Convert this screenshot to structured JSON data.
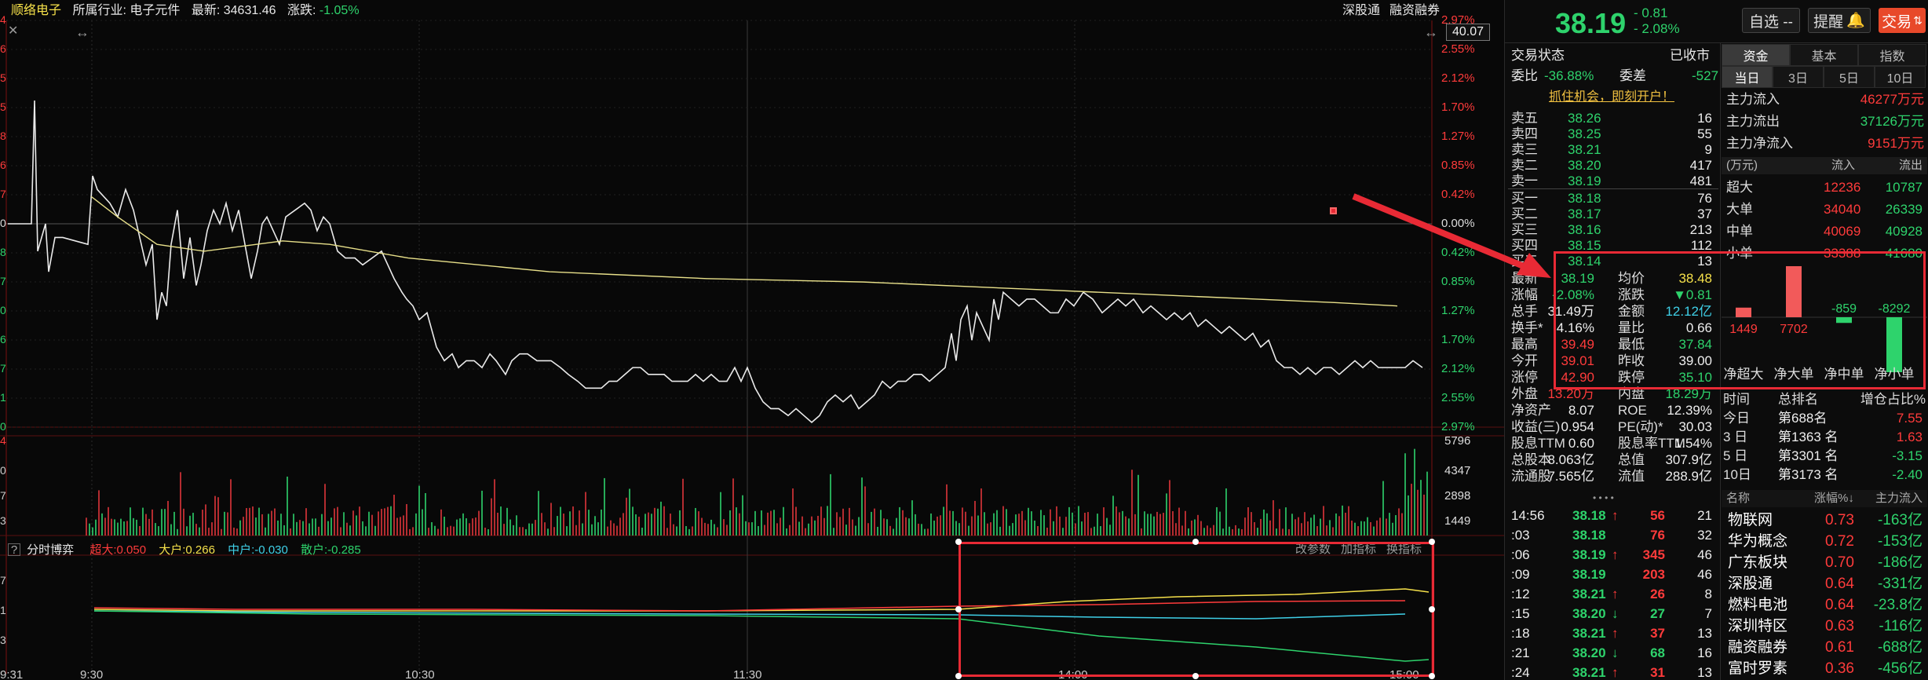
{
  "header": {
    "stock": "顺络电子",
    "industry_label": "所属行业:",
    "industry": "电子元件",
    "latest_label": "最新:",
    "latest": "34631.46",
    "change_label": "涨跌:",
    "change": "-1.05%",
    "link1": "深股通",
    "link2": "融资融券"
  },
  "price_axis_right": [
    "2.97%",
    "2.55%",
    "2.12%",
    "1.70%",
    "1.27%",
    "0.85%",
    "0.42%",
    "0.00%",
    "0.42%",
    "0.85%",
    "1.27%",
    "1.70%",
    "2.12%",
    "2.55%",
    "2.97%"
  ],
  "price_axis_left": [
    "4",
    "6",
    "5",
    "5",
    "8",
    "6",
    "7",
    "0",
    "8",
    "7",
    "0",
    "6",
    "7",
    "1",
    "0"
  ],
  "price_box": "40.07",
  "volume_axis": [
    "5796",
    "4347",
    "2898",
    "1449"
  ],
  "volume_axis_left": [
    "4",
    "0",
    "7",
    "3"
  ],
  "indicator": {
    "label": "分时博弈",
    "super": "超大:0.050",
    "large": "大户:0.266",
    "mid": "中户:-0.030",
    "small": "散户:-0.285",
    "btn1": "改参数",
    "btn2": "加指标",
    "btn3": "换指标"
  },
  "time_axis": [
    "9:31",
    "9:30",
    "10:30",
    "11:30",
    "14:00",
    "15:00"
  ],
  "indicator_axis_left": [
    "7",
    "1",
    "3"
  ],
  "quote": {
    "price": "38.19",
    "change": "- 0.81",
    "pct": "- 2.08%",
    "btn_fav": "自选 --",
    "btn_alert": "提醒",
    "btn_trade": "交易"
  },
  "status": {
    "label": "交易状态",
    "value": "已收市"
  },
  "weibi": {
    "l1": "委比",
    "v1": "-36.88%",
    "l2": "委差",
    "v2": "-527"
  },
  "ad": "抓住机会，即刻开户！",
  "sells": [
    {
      "n": "卖五",
      "p": "38.26",
      "v": "16"
    },
    {
      "n": "卖四",
      "p": "38.25",
      "v": "55"
    },
    {
      "n": "卖三",
      "p": "38.21",
      "v": "9"
    },
    {
      "n": "卖二",
      "p": "38.20",
      "v": "417"
    },
    {
      "n": "卖一",
      "p": "38.19",
      "v": "481"
    }
  ],
  "buys": [
    {
      "n": "买一",
      "p": "38.18",
      "v": "76"
    },
    {
      "n": "买二",
      "p": "38.17",
      "v": "37"
    },
    {
      "n": "买三",
      "p": "38.16",
      "v": "213"
    },
    {
      "n": "买四",
      "p": "38.15",
      "v": "112"
    },
    {
      "n": "买五",
      "p": "38.14",
      "v": "13"
    }
  ],
  "stats": [
    {
      "l1": "最新",
      "v1": "38.19",
      "l2": "均价",
      "v2": "38.48"
    },
    {
      "l1": "涨幅",
      "v1": "-2.08%",
      "l2": "涨跌",
      "v2": "▼0.81"
    },
    {
      "l1": "总手",
      "v1": "31.49万",
      "l2": "金额",
      "v2": "12.12亿"
    },
    {
      "l1": "换手*",
      "v1": "4.16%",
      "l2": "量比",
      "v2": "0.66"
    },
    {
      "l1": "最高",
      "v1": "39.49",
      "l2": "最低",
      "v2": "37.84"
    },
    {
      "l1": "今开",
      "v1": "39.01",
      "l2": "昨收",
      "v2": "39.00"
    },
    {
      "l1": "涨停",
      "v1": "42.90",
      "l2": "跌停",
      "v2": "35.10"
    },
    {
      "l1": "外盘",
      "v1": "13.20万",
      "l2": "内盘",
      "v2": "18.29万"
    },
    {
      "l1": "净资产",
      "v1": "8.07",
      "l2": "ROE",
      "v2": "12.39%"
    },
    {
      "l1": "收益(三)",
      "v1": "0.954",
      "l2": "PE(动)*",
      "v2": "30.03"
    },
    {
      "l1": "股息TTM",
      "v1": "0.60",
      "l2": "股息率TTM",
      "v2": "1.54%"
    },
    {
      "l1": "总股本",
      "v1": "8.063亿",
      "l2": "总值",
      "v2": "307.9亿"
    },
    {
      "l1": "流通股",
      "v1": "7.565亿",
      "l2": "流值",
      "v2": "288.9亿"
    }
  ],
  "ticks": [
    {
      "t": "14:56",
      "p": "38.18",
      "a": "↑",
      "v": "56",
      "n": "21"
    },
    {
      "t": ":03",
      "p": "38.18",
      "a": "",
      "v": "76",
      "n": "32"
    },
    {
      "t": ":06",
      "p": "38.19",
      "a": "↑",
      "v": "345",
      "n": "46"
    },
    {
      "t": ":09",
      "p": "38.19",
      "a": "",
      "v": "203",
      "n": "46"
    },
    {
      "t": ":12",
      "p": "38.21",
      "a": "↑",
      "v": "26",
      "n": "8"
    },
    {
      "t": ":15",
      "p": "38.20",
      "a": "↓",
      "v": "27",
      "n": "7"
    },
    {
      "t": ":18",
      "p": "38.21",
      "a": "↑",
      "v": "37",
      "n": "13"
    },
    {
      "t": ":21",
      "p": "38.20",
      "a": "↓",
      "v": "68",
      "n": "16"
    },
    {
      "t": ":24",
      "p": "38.21",
      "a": "↑",
      "v": "31",
      "n": "13"
    }
  ],
  "fund_tabs": [
    "资金",
    "基本",
    "指数"
  ],
  "period_tabs": [
    "当日",
    "3日",
    "5日",
    "10日"
  ],
  "flows": [
    {
      "l": "主力流入",
      "v": "46277万元"
    },
    {
      "l": "主力流出",
      "v": "37126万元"
    },
    {
      "l": "主力净流入",
      "v": "9151万元"
    }
  ],
  "flow_table": {
    "unit": "(万元)",
    "in": "流入",
    "out": "流出",
    "rows": [
      {
        "l": "超大",
        "i": "12236",
        "o": "10787"
      },
      {
        "l": "大单",
        "i": "34040",
        "o": "26339"
      },
      {
        "l": "中单",
        "i": "40069",
        "o": "40928"
      },
      {
        "l": "小单",
        "i": "33388",
        "o": "41680"
      }
    ]
  },
  "chart_data": {
    "type": "bar",
    "categories": [
      "净超大",
      "净大单",
      "净中单",
      "净小单"
    ],
    "values": [
      1449,
      7702,
      -859,
      -8292
    ],
    "labels": [
      "1449",
      "7702",
      "-859",
      "-8292"
    ]
  },
  "rank": {
    "h1": "时间",
    "h2": "总排名",
    "h3": "增仓占比%",
    "rows": [
      {
        "t": "今日",
        "r": "第688名",
        "v": "7.55"
      },
      {
        "t": "3 日",
        "r": "第1363 名",
        "v": "1.63"
      },
      {
        "t": "5 日",
        "r": "第3301 名",
        "v": "-3.15"
      },
      {
        "t": "10日",
        "r": "第3173 名",
        "v": "-2.40"
      }
    ]
  },
  "sector": {
    "h1": "名称",
    "h2": "涨幅%↓",
    "h3": "主力流入",
    "rows": [
      {
        "n": "物联网",
        "p": "0.73",
        "f": "-163亿"
      },
      {
        "n": "华为概念",
        "p": "0.72",
        "f": "-153亿"
      },
      {
        "n": "广东板块",
        "p": "0.70",
        "f": "-186亿"
      },
      {
        "n": "深股通",
        "p": "0.64",
        "f": "-331亿"
      },
      {
        "n": "燃料电池",
        "p": "0.64",
        "f": "-23.8亿"
      },
      {
        "n": "深圳特区",
        "p": "0.63",
        "f": "-116亿"
      },
      {
        "n": "融资融券",
        "p": "0.61",
        "f": "-688亿"
      },
      {
        "n": "富时罗素",
        "p": "0.36",
        "f": "-456亿"
      }
    ]
  },
  "colors": {
    "up": "#ff3b3b",
    "down": "#2ed36c",
    "accent": "#e82a35",
    "avg": "#e8e08a"
  }
}
